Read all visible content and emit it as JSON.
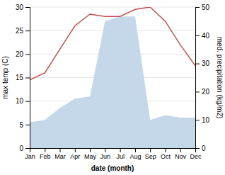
{
  "chart_data": {
    "type": "line",
    "categories": [
      "Jan",
      "Feb",
      "Mar",
      "Apr",
      "May",
      "Jun",
      "Jul",
      "Aug",
      "Sep",
      "Oct",
      "Nov",
      "Dec"
    ],
    "series": [
      {
        "type": "area",
        "color": "#c5d8ea",
        "values": [
          5.5,
          6.0,
          8.5,
          10.5,
          11.0,
          27.0,
          28.0,
          28.0,
          6.0,
          7.0,
          6.5,
          6.5
        ]
      },
      {
        "type": "line",
        "color": "#c0504d",
        "values": [
          14.5,
          16.0,
          21.0,
          26.0,
          28.5,
          28.0,
          28.0,
          29.5,
          30.0,
          27.0,
          22.0,
          17.5
        ]
      }
    ],
    "xlabel": "date (month)",
    "ylabel": "max temp (C)",
    "y2label": "med. precipitation (kg/m2)",
    "ylim": [
      0,
      30
    ],
    "yticks": [
      0,
      5,
      10,
      15,
      20,
      25,
      30
    ],
    "y2lim": [
      0,
      50
    ],
    "y2ticks": [
      0,
      10,
      20,
      30,
      40,
      50
    ],
    "grid": true
  }
}
